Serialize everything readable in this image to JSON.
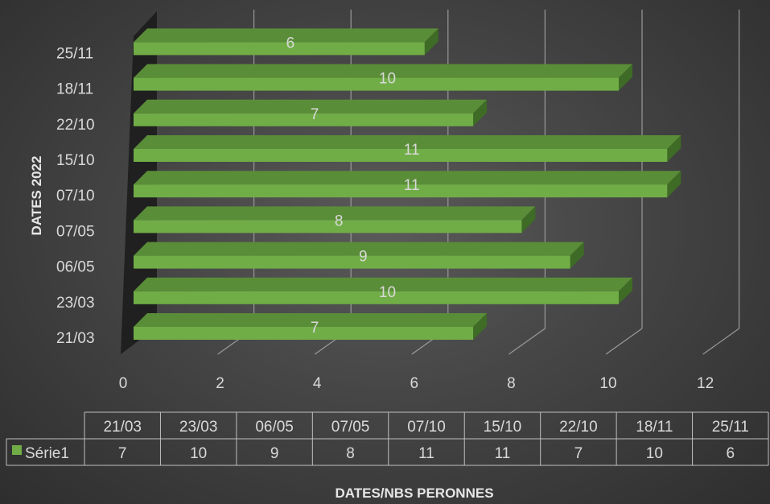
{
  "chart_data": {
    "type": "bar",
    "orientation": "horizontal",
    "style": "3d",
    "categories": [
      "21/03",
      "23/03",
      "06/05",
      "07/05",
      "07/10",
      "15/10",
      "22/10",
      "18/11",
      "25/11"
    ],
    "series": [
      {
        "name": "Série1",
        "values": [
          7,
          10,
          9,
          8,
          11,
          11,
          7,
          10,
          6
        ],
        "color": "#70ad47"
      }
    ],
    "xlim": [
      0,
      12
    ],
    "x_ticks": [
      0,
      2,
      4,
      6,
      8,
      10,
      12
    ],
    "ylabel": "DATES 2022",
    "xlabel": "DATES/NBS PERONNES",
    "data_labels": true,
    "grid": true,
    "data_table": true,
    "legend": "in-data-table"
  }
}
